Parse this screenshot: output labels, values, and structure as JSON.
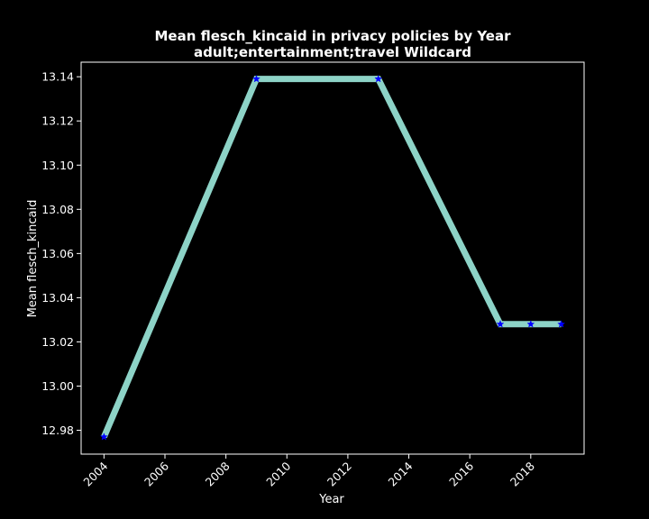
{
  "chart_data": {
    "type": "line",
    "title": "Mean flesch_kincaid in privacy policies by Year",
    "subtitle": "adult;entertainment;travel Wildcard",
    "xlabel": "Year",
    "ylabel": "Mean flesch_kincaid",
    "x": [
      2004,
      2009,
      2013,
      2017,
      2018,
      2019
    ],
    "series": [
      {
        "values": [
          12.977,
          13.139,
          13.139,
          13.028,
          13.028,
          13.028
        ]
      }
    ],
    "xlim": [
      2003.25,
      2019.75
    ],
    "ylim": [
      12.9692,
      13.1466
    ],
    "xticks": [
      2004,
      2006,
      2008,
      2010,
      2012,
      2014,
      2016,
      2018
    ],
    "yticks": [
      12.98,
      13.0,
      13.02,
      13.04,
      13.06,
      13.08,
      13.1,
      13.12,
      13.14
    ],
    "ytick_labels": [
      "12.98",
      "13.00",
      "13.02",
      "13.04",
      "13.06",
      "13.08",
      "13.10",
      "13.12",
      "13.14"
    ],
    "grid": false,
    "line_color": "#8dd3c7",
    "marker_color": "#0000ff",
    "marker": "star",
    "background": "#000000",
    "foreground": "#ffffff"
  }
}
